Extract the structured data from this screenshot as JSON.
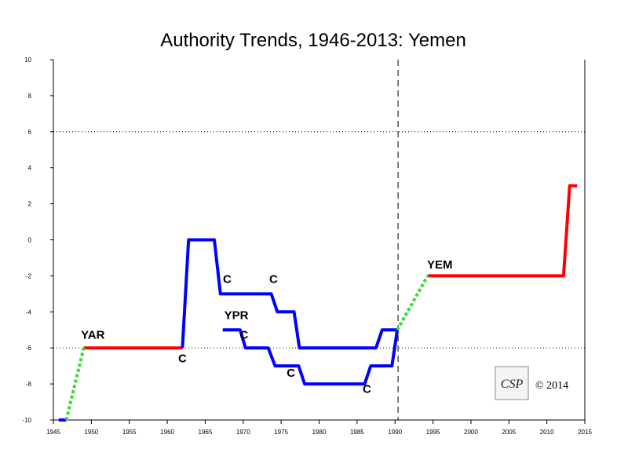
{
  "chart_data": {
    "type": "line",
    "title": "Authority Trends, 1946-2013: Yemen",
    "xlabel": "",
    "ylabel": "",
    "xlim": [
      1945,
      2015
    ],
    "ylim": [
      -10,
      10
    ],
    "x_ticks": [
      1945,
      1950,
      1955,
      1960,
      1965,
      1970,
      1975,
      1980,
      1985,
      1990,
      1995,
      2000,
      2005,
      2010,
      2015
    ],
    "y_ticks": [
      -10,
      -8,
      -6,
      -4,
      -2,
      0,
      2,
      4,
      6,
      8,
      10
    ],
    "reference_lines": [
      {
        "orientation": "horizontal",
        "value": 6,
        "style": "dotted"
      },
      {
        "orientation": "horizontal",
        "value": -6,
        "style": "dotted"
      },
      {
        "orientation": "vertical",
        "value": 1990.4,
        "style": "dashed"
      }
    ],
    "series": [
      {
        "color": "#ff0000",
        "style": "solid",
        "points": [
          [
            1949,
            -6
          ],
          [
            1962,
            -6
          ]
        ]
      },
      {
        "color": "#ff0000",
        "style": "solid",
        "points": [
          [
            1994.3,
            -2
          ],
          [
            2012.2,
            -2
          ],
          [
            2013,
            3
          ],
          [
            2014,
            3
          ]
        ]
      },
      {
        "color": "#0000ff",
        "style": "solid",
        "points": [
          [
            1945.7,
            -10
          ],
          [
            1946.7,
            -10
          ]
        ]
      },
      {
        "color": "#0000ff",
        "style": "solid",
        "points": [
          [
            1962,
            -6
          ],
          [
            1962.8,
            0
          ],
          [
            1966.2,
            0
          ],
          [
            1967,
            -3
          ],
          [
            1973.7,
            -3
          ],
          [
            1974.5,
            -4
          ],
          [
            1976.7,
            -4
          ],
          [
            1977.4,
            -6
          ],
          [
            1987.5,
            -6
          ],
          [
            1988.3,
            -5
          ],
          [
            1990.3,
            -5
          ]
        ]
      },
      {
        "color": "#0000ff",
        "style": "solid",
        "points": [
          [
            1967.3,
            -5
          ],
          [
            1969.6,
            -5
          ],
          [
            1970.3,
            -6
          ],
          [
            1973.3,
            -6
          ],
          [
            1974.2,
            -7
          ],
          [
            1977.3,
            -7
          ],
          [
            1978.1,
            -8
          ],
          [
            1986,
            -8
          ],
          [
            1986.8,
            -7
          ],
          [
            1989.6,
            -7
          ],
          [
            1990.3,
            -5
          ]
        ]
      },
      {
        "color": "#33dd33",
        "style": "dashed",
        "points": [
          [
            1946.7,
            -10
          ],
          [
            1949,
            -6
          ]
        ]
      },
      {
        "color": "#33dd33",
        "style": "dashed",
        "points": [
          [
            1990.3,
            -5
          ],
          [
            1994.3,
            -2
          ]
        ]
      }
    ],
    "annotations": [
      {
        "text": "YAR",
        "x": 1950.2,
        "y": -5.5
      },
      {
        "text": "C",
        "x": 1962,
        "y": -6.8
      },
      {
        "text": "C",
        "x": 1967.9,
        "y": -2.4
      },
      {
        "text": "C",
        "x": 1974,
        "y": -2.4
      },
      {
        "text": "YPR",
        "x": 1969.1,
        "y": -4.4
      },
      {
        "text": "C",
        "x": 1970.1,
        "y": -5.5
      },
      {
        "text": "C",
        "x": 1976.3,
        "y": -7.6
      },
      {
        "text": "C",
        "x": 1986.3,
        "y": -8.5
      },
      {
        "text": "YEM",
        "x": 1995.9,
        "y": -1.6
      }
    ],
    "copyright": "© 2014",
    "logo": "CSP"
  }
}
